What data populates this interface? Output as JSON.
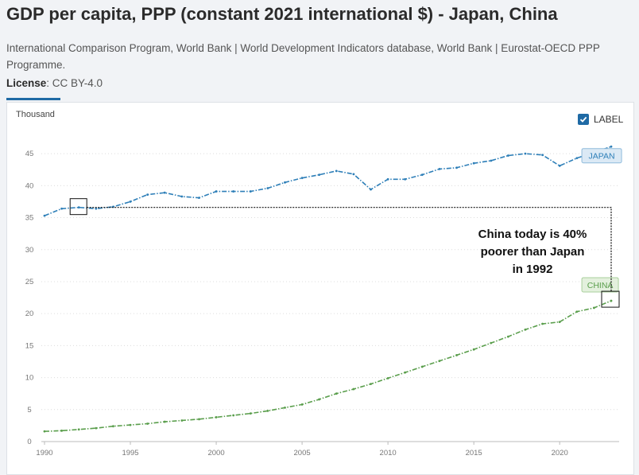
{
  "header": {
    "title": "GDP per capita, PPP (constant 2021 international $) - Japan, China",
    "source": "International Comparison Program, World Bank | World Development Indicators database, World Bank | Eurostat-OECD PPP Programme.",
    "license_label": "License",
    "license_value": ": CC BY-4.0"
  },
  "controls": {
    "label_toggle": "LABEL"
  },
  "colors": {
    "japan": "#2e7fb8",
    "china": "#5a9e4c",
    "grid": "#dcdcdc"
  },
  "chart_data": {
    "type": "line",
    "title": "GDP per capita, PPP (constant 2021 international $) - Japan, China",
    "ylabel": "Thousand",
    "xlabel": "",
    "xlim": [
      1990,
      2023
    ],
    "ylim": [
      0,
      48
    ],
    "x_ticks": [
      1990,
      1995,
      2000,
      2005,
      2010,
      2015,
      2020
    ],
    "y_ticks": [
      0,
      5,
      10,
      15,
      20,
      25,
      30,
      35,
      40,
      45
    ],
    "x": [
      1990,
      1991,
      1992,
      1993,
      1994,
      1995,
      1996,
      1997,
      1998,
      1999,
      2000,
      2001,
      2002,
      2003,
      2004,
      2005,
      2006,
      2007,
      2008,
      2009,
      2010,
      2011,
      2012,
      2013,
      2014,
      2015,
      2016,
      2017,
      2018,
      2019,
      2020,
      2021,
      2022,
      2023
    ],
    "series": [
      {
        "name": "JAPAN",
        "values": [
          35.3,
          36.4,
          36.6,
          36.4,
          36.7,
          37.5,
          38.6,
          38.9,
          38.3,
          38.1,
          39.1,
          39.1,
          39.1,
          39.6,
          40.5,
          41.2,
          41.7,
          42.3,
          41.8,
          39.4,
          41.0,
          41.0,
          41.7,
          42.6,
          42.8,
          43.5,
          43.9,
          44.7,
          45.0,
          44.8,
          43.1,
          44.3,
          45.2,
          46.1
        ]
      },
      {
        "name": "CHINA",
        "values": [
          1.6,
          1.7,
          1.9,
          2.1,
          2.4,
          2.6,
          2.8,
          3.1,
          3.3,
          3.5,
          3.8,
          4.1,
          4.4,
          4.8,
          5.3,
          5.8,
          6.6,
          7.5,
          8.2,
          9.0,
          9.9,
          10.8,
          11.7,
          12.6,
          13.5,
          14.4,
          15.4,
          16.4,
          17.5,
          18.4,
          18.7,
          20.3,
          20.9,
          22.0
        ]
      }
    ],
    "annotation": [
      "China today is 40%",
      "poorer than Japan",
      "in 1992"
    ]
  }
}
